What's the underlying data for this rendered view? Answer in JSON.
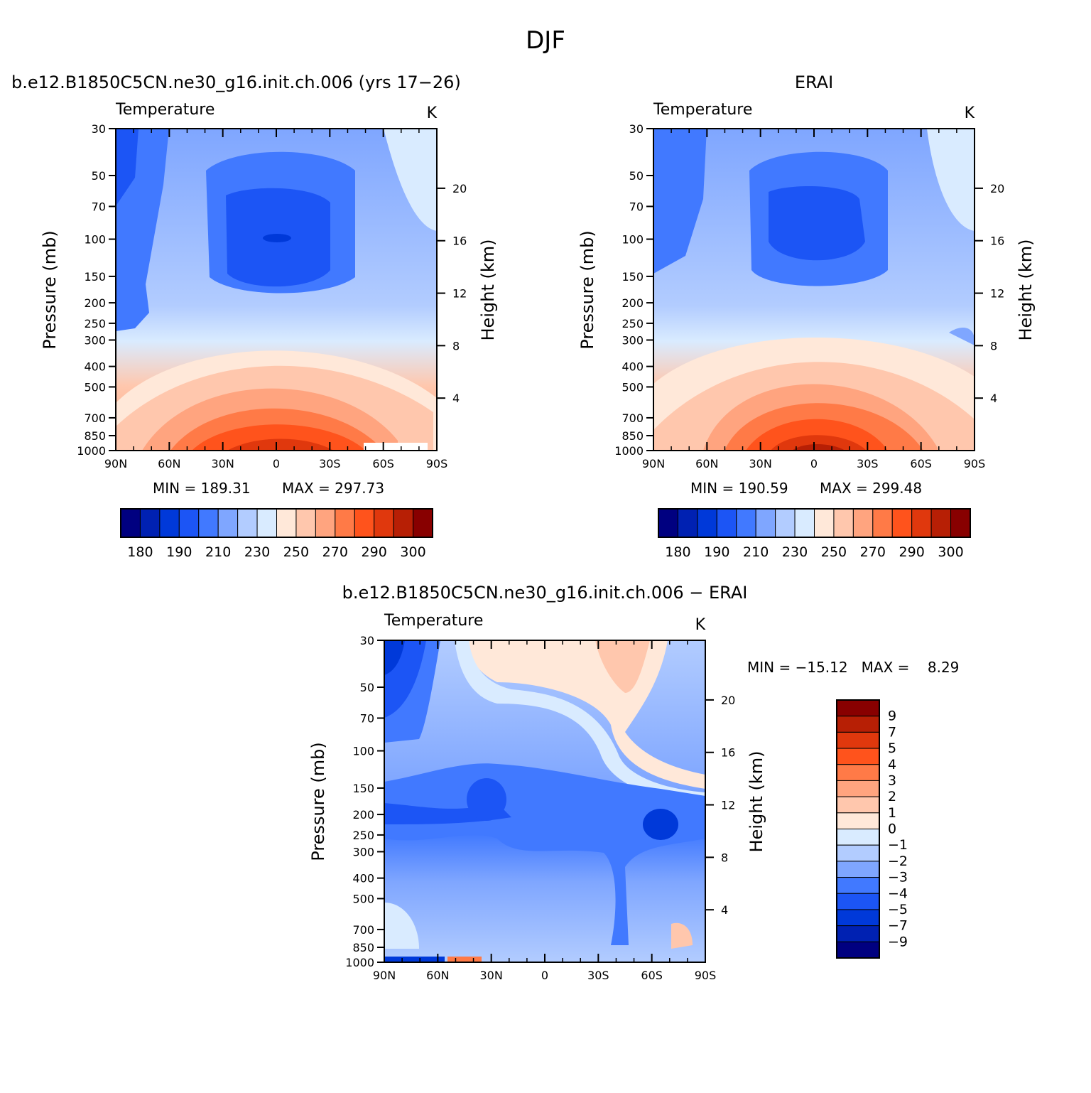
{
  "figure": {
    "title": "DJF"
  },
  "colors": {
    "abs_scale": [
      "#000080",
      "#0021b2",
      "#0039d9",
      "#1c55f5",
      "#4179ff",
      "#7fa6ff",
      "#b2ccff",
      "#d9ebff",
      "#ffe8d9",
      "#ffc7ad",
      "#ffa47f",
      "#ff7a47",
      "#ff531c",
      "#e0380d",
      "#b71f05",
      "#880000"
    ],
    "diff_scale": [
      "#000080",
      "#0021b2",
      "#0039d9",
      "#1c55f5",
      "#4179ff",
      "#7fa6ff",
      "#b2ccff",
      "#d9ebff",
      "#ffe8d9",
      "#ffc7ad",
      "#ffa47f",
      "#ff7a47",
      "#ff531c",
      "#e0380d",
      "#b71f05",
      "#880000"
    ]
  },
  "chart_data": [
    {
      "type": "heatmap",
      "id": "model",
      "title": "b.e12.B1850C5CN.ne30_g16.init.ch.006 (yrs 17−26)",
      "variable": "Temperature",
      "units": "K",
      "xlabel": "",
      "ylabel": "Pressure (mb)",
      "y2label": "Height (km)",
      "x_ticks": [
        "90N",
        "60N",
        "30N",
        "0",
        "30S",
        "60S",
        "90S"
      ],
      "y_ticks": [
        "30",
        "50",
        "70",
        "100",
        "150",
        "200",
        "250",
        "300",
        "400",
        "500",
        "700",
        "850",
        "1000"
      ],
      "y2_ticks": [
        "20",
        "16",
        "12",
        "8",
        "4"
      ],
      "y_scale": "log",
      "ylim": [
        1000,
        30
      ],
      "min_label": "MIN = 189.31",
      "max_label": "MAX = 297.73",
      "min": 189.31,
      "max": 297.73,
      "colorbar": {
        "orientation": "horizontal",
        "levels": [
          180,
          185,
          190,
          200,
          210,
          220,
          230,
          240,
          250,
          260,
          270,
          280,
          290,
          295,
          300
        ],
        "tick_labels": [
          "180",
          "190",
          "210",
          "230",
          "250",
          "270",
          "290",
          "300"
        ]
      },
      "profile_at_equator": [
        {
          "p": 1000,
          "T": 297
        },
        {
          "p": 850,
          "T": 291
        },
        {
          "p": 700,
          "T": 284
        },
        {
          "p": 500,
          "T": 268
        },
        {
          "p": 400,
          "T": 256
        },
        {
          "p": 300,
          "T": 240
        },
        {
          "p": 250,
          "T": 232
        },
        {
          "p": 200,
          "T": 220
        },
        {
          "p": 150,
          "T": 205
        },
        {
          "p": 100,
          "T": 190
        },
        {
          "p": 70,
          "T": 196
        },
        {
          "p": 50,
          "T": 205
        },
        {
          "p": 30,
          "T": 214
        }
      ]
    },
    {
      "type": "heatmap",
      "id": "obs",
      "title": "ERAI",
      "variable": "Temperature",
      "units": "K",
      "xlabel": "",
      "ylabel": "Pressure (mb)",
      "y2label": "Height (km)",
      "x_ticks": [
        "90N",
        "60N",
        "30N",
        "0",
        "30S",
        "60S",
        "90S"
      ],
      "y_ticks": [
        "30",
        "50",
        "70",
        "100",
        "150",
        "200",
        "250",
        "300",
        "400",
        "500",
        "700",
        "850",
        "1000"
      ],
      "y2_ticks": [
        "20",
        "16",
        "12",
        "8",
        "4"
      ],
      "y_scale": "log",
      "ylim": [
        1000,
        30
      ],
      "min_label": "MIN = 190.59",
      "max_label": "MAX = 299.48",
      "min": 190.59,
      "max": 299.48,
      "colorbar": {
        "orientation": "horizontal",
        "levels": [
          180,
          185,
          190,
          200,
          210,
          220,
          230,
          240,
          250,
          260,
          270,
          280,
          290,
          295,
          300
        ],
        "tick_labels": [
          "180",
          "190",
          "210",
          "230",
          "250",
          "270",
          "290",
          "300"
        ]
      }
    },
    {
      "type": "heatmap",
      "id": "diff",
      "title": "b.e12.B1850C5CN.ne30_g16.init.ch.006 − ERAI",
      "variable": "Temperature",
      "units": "K",
      "xlabel": "",
      "ylabel": "Pressure (mb)",
      "y2label": "Height (km)",
      "x_ticks": [
        "90N",
        "60N",
        "30N",
        "0",
        "30S",
        "60S",
        "90S"
      ],
      "y_ticks": [
        "30",
        "50",
        "70",
        "100",
        "150",
        "200",
        "250",
        "300",
        "400",
        "500",
        "700",
        "850",
        "1000"
      ],
      "y2_ticks": [
        "20",
        "16",
        "12",
        "8",
        "4"
      ],
      "y_scale": "log",
      "ylim": [
        1000,
        30
      ],
      "minmax_label": "MIN = −15.12   MAX =    8.29",
      "min": -15.12,
      "max": 8.29,
      "colorbar": {
        "orientation": "vertical",
        "levels": [
          -9,
          -7,
          -5,
          -4,
          -3,
          -2,
          -1,
          0,
          1,
          2,
          3,
          4,
          5,
          7,
          9
        ],
        "tick_labels": [
          "9",
          "7",
          "5",
          "4",
          "3",
          "2",
          "1",
          "0",
          "−1",
          "−2",
          "−3",
          "−4",
          "−5",
          "−7",
          "−9"
        ]
      }
    }
  ]
}
